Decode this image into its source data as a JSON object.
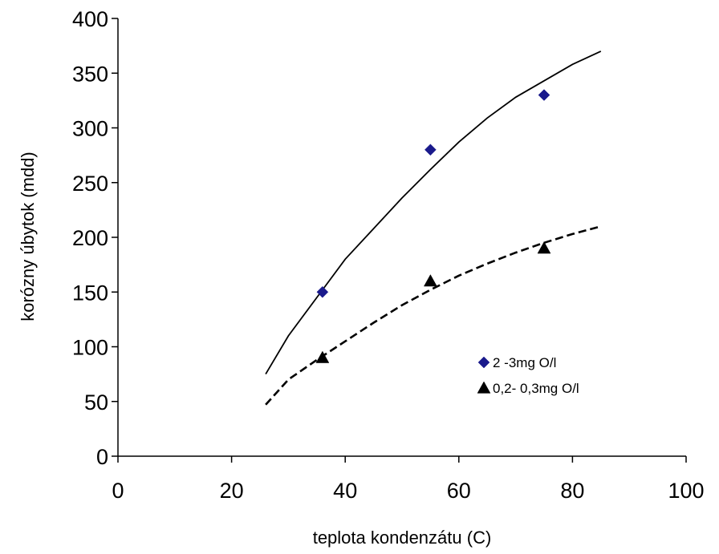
{
  "chart_data": {
    "type": "scatter",
    "title": "",
    "xlabel": "teplota kondenzátu (C)",
    "ylabel": "korózny úbytok (mdd)",
    "xlim": [
      0,
      100
    ],
    "ylim": [
      0,
      400
    ],
    "xticks": [
      0,
      20,
      40,
      60,
      80,
      100
    ],
    "yticks": [
      0,
      50,
      100,
      150,
      200,
      250,
      300,
      350,
      400
    ],
    "grid": false,
    "legend_position": "right",
    "series": [
      {
        "name": "2 -3mg O/l",
        "marker": "diamond",
        "color": "#1a1a8c",
        "x": [
          36,
          55,
          75
        ],
        "y": [
          150,
          280,
          330
        ]
      },
      {
        "name": "0,2- 0,3mg O/l",
        "marker": "triangle",
        "color": "#000000",
        "x": [
          36,
          55,
          75
        ],
        "y": [
          90,
          160,
          190
        ]
      }
    ],
    "trendlines": [
      {
        "style": "solid",
        "color": "#000000",
        "x": [
          26,
          30,
          35,
          40,
          45,
          50,
          55,
          60,
          65,
          70,
          75,
          80,
          85
        ],
        "y": [
          75,
          110,
          145,
          180,
          208,
          236,
          262,
          287,
          309,
          328,
          343,
          358,
          370
        ]
      },
      {
        "style": "dashed",
        "color": "#000000",
        "x": [
          26,
          30,
          35,
          40,
          45,
          50,
          55,
          60,
          65,
          70,
          75,
          80,
          85
        ],
        "y": [
          47,
          70,
          88,
          105,
          122,
          138,
          152,
          165,
          176,
          186,
          195,
          203,
          210
        ]
      }
    ]
  }
}
